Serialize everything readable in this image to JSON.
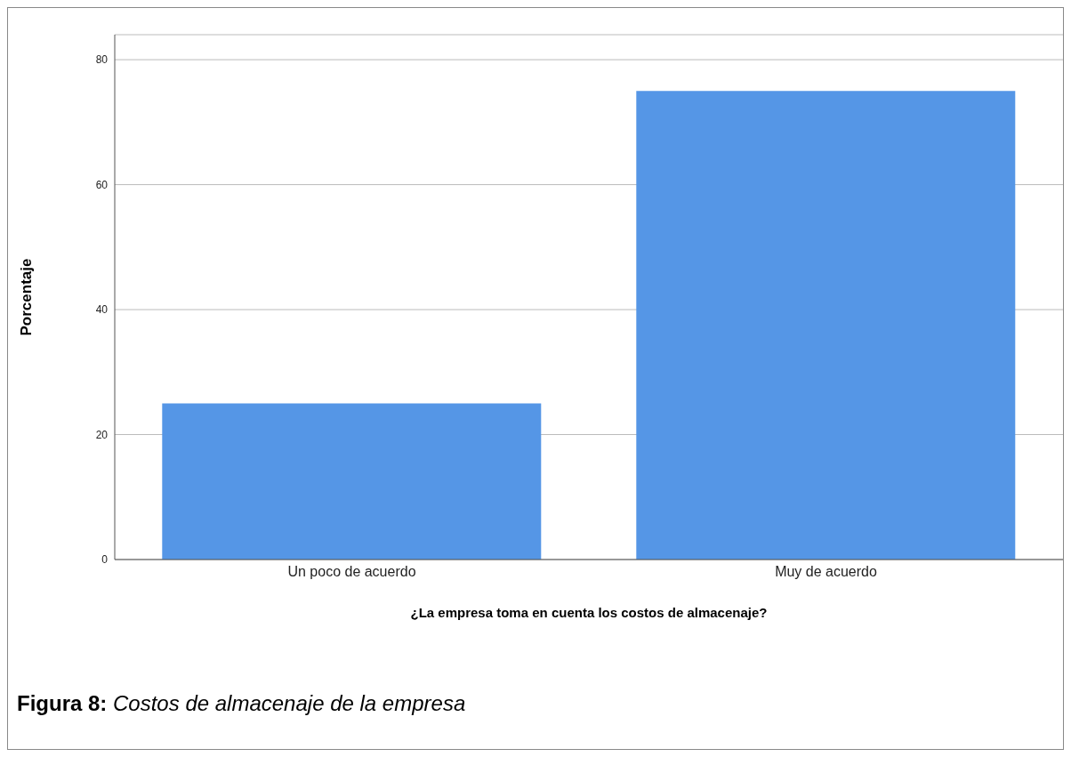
{
  "chart_data": {
    "type": "bar",
    "categories": [
      "Un poco de acuerdo",
      "Muy de acuerdo"
    ],
    "values": [
      25,
      75
    ],
    "color": "#5596e6",
    "ylim": [
      0,
      84
    ],
    "yticks": [
      0,
      20,
      40,
      60,
      80
    ],
    "grid": "y",
    "xlabel": "¿La empresa toma en cuenta los costos de almacenaje?",
    "ylabel": "Porcentaje",
    "annotations": [
      "Figura 8: Costos de almacenaje de la empresa"
    ]
  }
}
